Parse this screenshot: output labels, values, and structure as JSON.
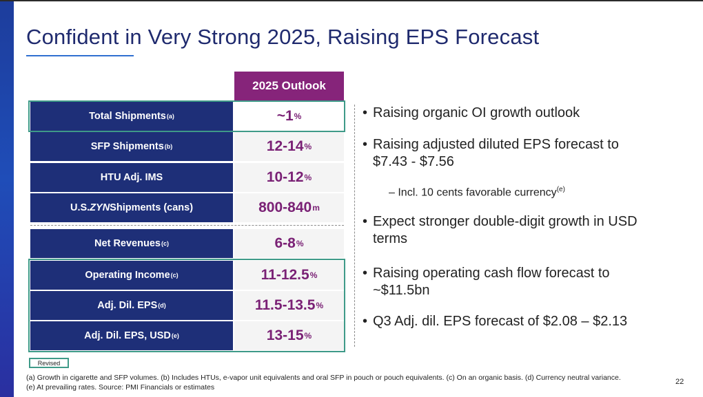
{
  "title": "Confident in Very Strong 2025, Raising EPS Forecast",
  "table": {
    "header": "2025 Outlook",
    "rows": [
      {
        "label": "Total Shipments",
        "note": "(a)",
        "value": "~1",
        "unit": "%"
      },
      {
        "label": "SFP Shipments",
        "note": "(b)",
        "value": "12-14",
        "unit": "%"
      },
      {
        "label": "HTU Adj. IMS",
        "note": "",
        "value": "10-12",
        "unit": "%"
      },
      {
        "label_pre": "U.S. ",
        "label_em": "ZYN",
        "label_post": " Shipments (cans)",
        "value": "800-840",
        "unit": "m"
      },
      {
        "label": "Net Revenues",
        "note": "(c)",
        "value": "6-8",
        "unit": "%"
      },
      {
        "label": "Operating Income",
        "note": "(c)",
        "value": "11-12.5",
        "unit": "%"
      },
      {
        "label": "Adj. Dil. EPS",
        "note": "(d)",
        "value": "11.5-13.5",
        "unit": "%"
      },
      {
        "label": "Adj. Dil. EPS, USD",
        "note": "(e)",
        "value": "13-15",
        "unit": "%"
      }
    ]
  },
  "bullets": [
    {
      "line1": "Raising organic OI growth outlook"
    },
    {
      "line1": "Raising adjusted diluted EPS forecast to",
      "line2": "$7.43 - $7.56"
    },
    {
      "line1": "Expect stronger double-digit growth in USD",
      "line2": "terms"
    },
    {
      "line1": "Raising operating cash flow forecast to",
      "line2": "~$11.5bn"
    },
    {
      "line1": "Q3 Adj. dil. EPS forecast of $2.08 – $2.13"
    }
  ],
  "sub_bullet": {
    "text": "– Incl. 10 cents favorable currency",
    "note": "(e)"
  },
  "legend": "Revised",
  "footnotes": [
    "(a) Growth in cigarette and SFP volumes. (b) Includes HTUs, e-vapor unit equivalents and oral SFP in pouch or pouch equivalents. (c) On an organic basis. (d) Currency neutral variance.",
    "(e) At prevailing rates. Source: PMI Financials or estimates"
  ],
  "page_number": "22",
  "colors": {
    "navy": "#1e2f78",
    "purple": "#86247a",
    "value_text": "#7a2175",
    "revised_border": "#3e9a88",
    "title": "#1f2a6e"
  }
}
